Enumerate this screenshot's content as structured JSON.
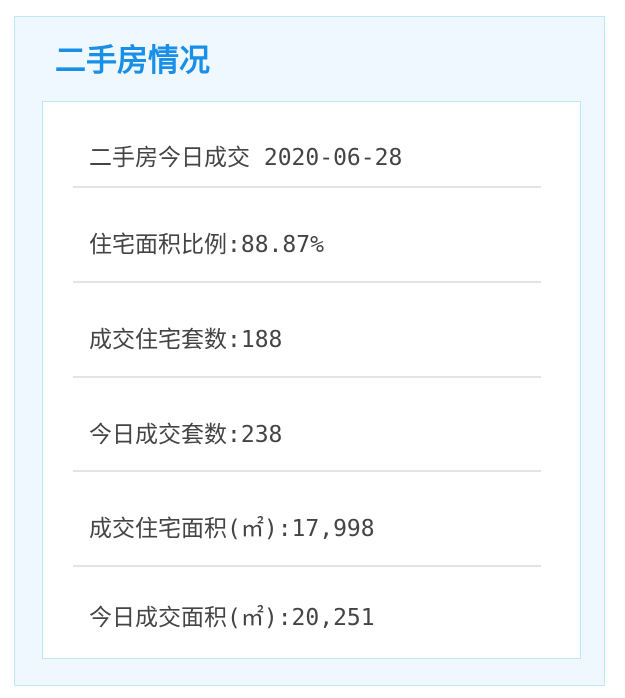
{
  "panel": {
    "title": "二手房情况",
    "header": "二手房今日成交 2020-06-28",
    "rows": [
      {
        "label": "住宅面积比例:88.87%"
      },
      {
        "label": "成交住宅套数:188"
      },
      {
        "label": "今日成交套数:238"
      },
      {
        "label": "成交住宅面积(㎡):17,998"
      },
      {
        "label": "今日成交面积(㎡):20,251"
      }
    ]
  },
  "colors": {
    "title": "#1a8fe8",
    "panel_bg": "#eef8fe",
    "border": "#bde9f7"
  }
}
